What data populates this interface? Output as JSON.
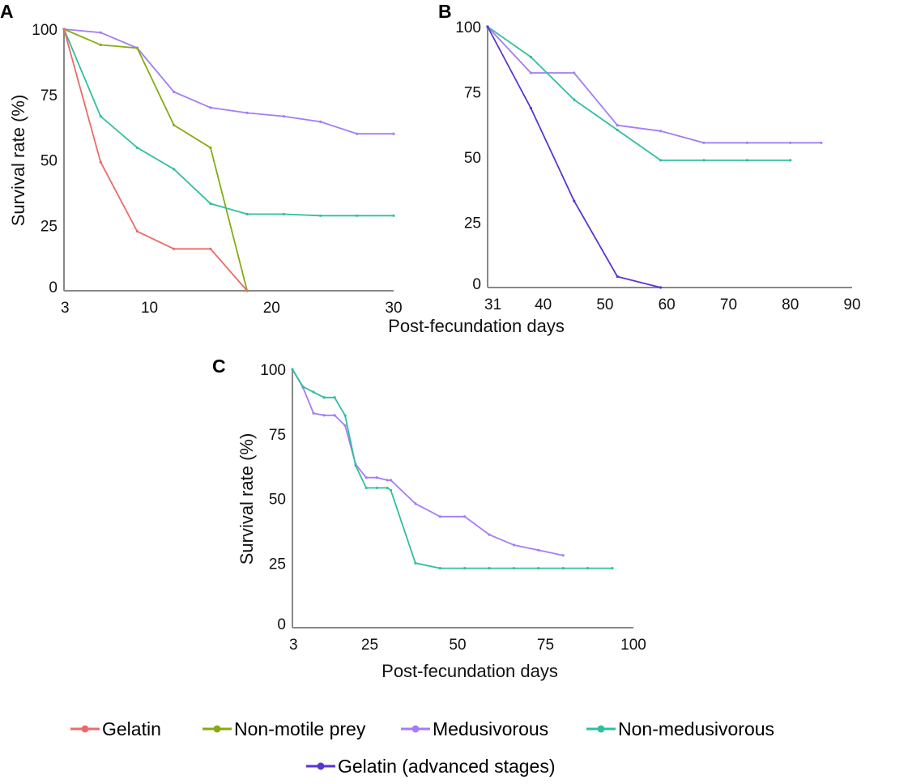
{
  "chart_data": [
    {
      "type": "line",
      "panel": "A",
      "xlabel": "Post-fecundation days",
      "ylabel": "Survival rate (%)",
      "xlim": [
        3,
        30
      ],
      "ylim": [
        0,
        100
      ],
      "xticks": [
        3,
        10,
        20,
        30
      ],
      "yticks": [
        0,
        25,
        50,
        75,
        100
      ],
      "grid": false,
      "series": [
        {
          "name": "Medusivorous",
          "x": [
            3,
            6,
            9,
            12,
            15,
            18,
            21,
            24,
            27,
            30
          ],
          "y": [
            100,
            98.7,
            92.8,
            76,
            70,
            68,
            66.7,
            64.6,
            60,
            60
          ]
        },
        {
          "name": "Non-motile prey",
          "x": [
            3,
            6,
            9,
            12,
            15,
            18
          ],
          "y": [
            100,
            94,
            92.8,
            63.3,
            54.7,
            0
          ]
        },
        {
          "name": "Non-medusivorous",
          "x": [
            3,
            6,
            9,
            12,
            15,
            18,
            21,
            24,
            27,
            30
          ],
          "y": [
            100,
            66.7,
            54.7,
            46.5,
            33.3,
            29.3,
            29.3,
            28.7,
            28.7,
            28.7
          ]
        },
        {
          "name": "Gelatin",
          "x": [
            3,
            6,
            9,
            12,
            15,
            18
          ],
          "y": [
            100,
            49.2,
            22.7,
            16,
            16,
            0
          ]
        }
      ]
    },
    {
      "type": "line",
      "panel": "B",
      "xlabel": "",
      "ylabel": "",
      "xlim": [
        31,
        90
      ],
      "ylim": [
        0,
        100
      ],
      "xticks": [
        31,
        40,
        50,
        60,
        70,
        80,
        90
      ],
      "yticks": [
        0,
        25,
        50,
        75,
        100
      ],
      "grid": false,
      "series": [
        {
          "name": "Medusivorous",
          "x": [
            31,
            38,
            45,
            52,
            59,
            66,
            73,
            80,
            85
          ],
          "y": [
            100,
            82.3,
            82.3,
            62.2,
            60,
            55.5,
            55.5,
            55.5,
            55.5
          ]
        },
        {
          "name": "Non-medusivorous",
          "x": [
            31,
            38,
            45,
            52,
            59,
            66,
            73,
            80
          ],
          "y": [
            100,
            88.4,
            72,
            60.4,
            48.8,
            48.8,
            48.8,
            48.8
          ]
        },
        {
          "name": "Gelatin (advanced stages)",
          "x": [
            31,
            38,
            45,
            52,
            59
          ],
          "y": [
            100,
            68.8,
            33.2,
            4.2,
            0
          ]
        }
      ]
    },
    {
      "type": "line",
      "panel": "C",
      "xlabel": "Post-fecundation days",
      "ylabel": "Survival rate (%)",
      "xlim": [
        3,
        100
      ],
      "ylim": [
        0,
        100
      ],
      "xticks": [
        3,
        25,
        50,
        75,
        100
      ],
      "yticks": [
        0,
        25,
        50,
        75,
        100
      ],
      "grid": false,
      "series": [
        {
          "name": "Medusivorous",
          "x": [
            3,
            6,
            9,
            12,
            15,
            18,
            21,
            24,
            27,
            30,
            31,
            38,
            45,
            52,
            59,
            66,
            73,
            80
          ],
          "y": [
            100,
            93,
            83,
            82.2,
            82.2,
            78.2,
            63.2,
            58.1,
            58.1,
            57.1,
            57.1,
            48,
            43,
            43,
            36,
            32,
            30,
            28
          ]
        },
        {
          "name": "Non-medusivorous",
          "x": [
            3,
            6,
            9,
            12,
            15,
            18,
            21,
            24,
            27,
            30,
            31,
            38,
            45,
            52,
            59,
            66,
            73,
            80,
            87,
            94
          ],
          "y": [
            100,
            93.3,
            91.2,
            89.1,
            89.1,
            82.1,
            62.7,
            54.1,
            54.1,
            54.1,
            53.2,
            25,
            23,
            23,
            23,
            23,
            23,
            23,
            23,
            23
          ]
        }
      ]
    }
  ],
  "legend": {
    "placement": "bottom",
    "items": [
      {
        "name": "Gelatin",
        "color": "#ee6a6a"
      },
      {
        "name": "Non-motile prey",
        "color": "#86aa12"
      },
      {
        "name": "Medusivorous",
        "color": "#a47df6"
      },
      {
        "name": "Non-medusivorous",
        "color": "#2fbf9f"
      },
      {
        "name": "Gelatin (advanced stages)",
        "color": "#5a33d6"
      }
    ]
  }
}
